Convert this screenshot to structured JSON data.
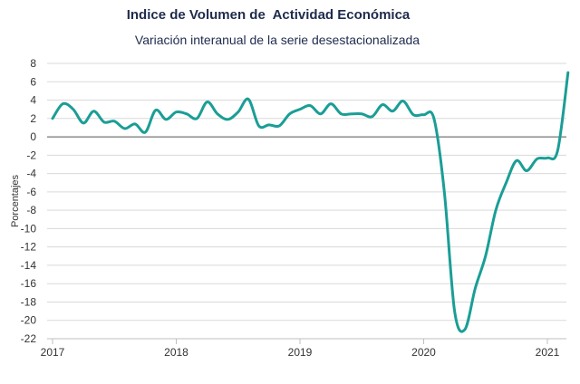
{
  "chart_data": {
    "type": "line",
    "title": "Indice de Volumen de  Actividad Económica",
    "subtitle": "Variación interanual de la serie desestacionalizada",
    "ylabel": "Porcentajes",
    "xlabel": "",
    "ylim": [
      -22,
      8
    ],
    "xlim": [
      2017.0,
      2021.2
    ],
    "yticks": [
      8,
      6,
      4,
      2,
      0,
      -2,
      -4,
      -6,
      -8,
      -10,
      -12,
      -14,
      -16,
      -18,
      -20,
      -22
    ],
    "xticks": [
      "2017",
      "2018",
      "2019",
      "2020",
      "2021"
    ],
    "grid": true,
    "line_color": "#1a9e96",
    "series": [
      {
        "name": "",
        "x": [
          2017.0,
          2017.083,
          2017.167,
          2017.25,
          2017.333,
          2017.417,
          2017.5,
          2017.583,
          2017.667,
          2017.75,
          2017.833,
          2017.917,
          2018.0,
          2018.083,
          2018.167,
          2018.25,
          2018.333,
          2018.417,
          2018.5,
          2018.583,
          2018.667,
          2018.75,
          2018.833,
          2018.917,
          2019.0,
          2019.083,
          2019.167,
          2019.25,
          2019.333,
          2019.417,
          2019.5,
          2019.583,
          2019.667,
          2019.75,
          2019.833,
          2019.917,
          2020.0,
          2020.083,
          2020.167,
          2020.25,
          2020.333,
          2020.417,
          2020.5,
          2020.583,
          2020.667,
          2020.75,
          2020.833,
          2020.917,
          2021.0,
          2021.083,
          2021.167
        ],
        "values": [
          2.0,
          3.6,
          3.0,
          1.5,
          2.8,
          1.6,
          1.7,
          0.9,
          1.4,
          0.5,
          2.9,
          1.9,
          2.7,
          2.5,
          2.0,
          3.8,
          2.5,
          1.9,
          2.7,
          4.1,
          1.2,
          1.3,
          1.2,
          2.5,
          3.0,
          3.4,
          2.5,
          3.6,
          2.5,
          2.5,
          2.5,
          2.2,
          3.5,
          2.8,
          3.9,
          2.4,
          2.4,
          2.0,
          -6.0,
          -19.0,
          -21.0,
          -16.5,
          -13.0,
          -8.0,
          -5.0,
          -2.6,
          -3.7,
          -2.4,
          -2.3,
          -1.5,
          7.0
        ]
      }
    ]
  }
}
